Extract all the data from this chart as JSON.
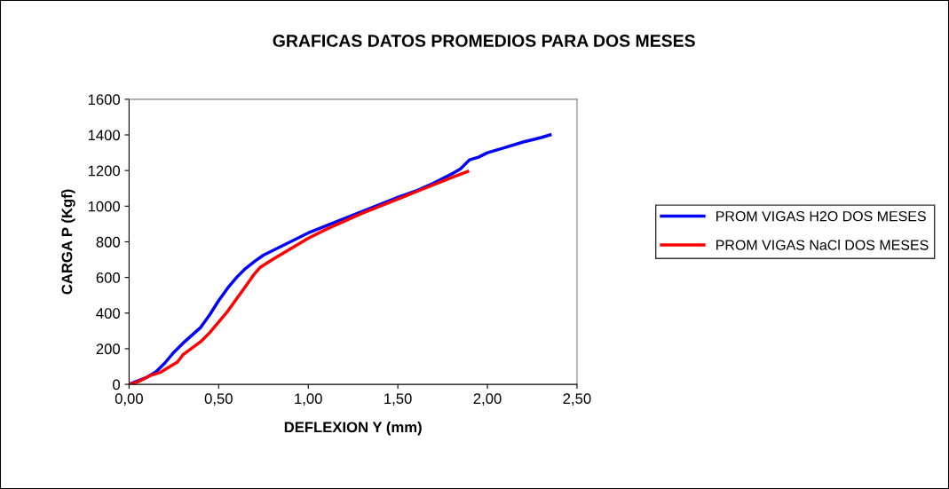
{
  "chart_data": {
    "type": "line",
    "title": "GRAFICAS DATOS PROMEDIOS PARA DOS MESES",
    "xlabel": "DEFLEXION Y (mm)",
    "ylabel": "CARGA P (Kgf)",
    "xlim": [
      0,
      2.5
    ],
    "xticks": [
      {
        "value": 0,
        "label": "0,00"
      },
      {
        "value": 0.5,
        "label": "0,50"
      },
      {
        "value": 1,
        "label": "1,00"
      },
      {
        "value": 1.5,
        "label": "1,50"
      },
      {
        "value": 2,
        "label": "2,00"
      },
      {
        "value": 2.5,
        "label": "2,50"
      }
    ],
    "ylim": [
      0,
      1600
    ],
    "yticks": [
      0,
      200,
      400,
      600,
      800,
      1000,
      1200,
      1400,
      1600
    ],
    "grid": false,
    "legend": "right",
    "marker": "none",
    "line_style": "solid",
    "series": [
      {
        "name": "PROM VIGAS H2O DOS MESES",
        "color": "#0000ff",
        "x": [
          0,
          0.1,
          0.15,
          0.2,
          0.25,
          0.3,
          0.4,
          0.45,
          0.5,
          0.55,
          0.6,
          0.65,
          0.7,
          0.75,
          0.8,
          0.9,
          1.0,
          1.1,
          1.2,
          1.3,
          1.4,
          1.5,
          1.6,
          1.7,
          1.8,
          1.85,
          1.9,
          1.95,
          2.0,
          2.1,
          2.2,
          2.3,
          2.35
        ],
        "values": [
          0,
          40,
          70,
          120,
          180,
          230,
          320,
          390,
          470,
          540,
          600,
          650,
          690,
          725,
          750,
          800,
          850,
          890,
          930,
          970,
          1010,
          1050,
          1085,
          1130,
          1180,
          1210,
          1260,
          1275,
          1300,
          1330,
          1360,
          1385,
          1400
        ]
      },
      {
        "name": "PROM VIGAS NaCl DOS MESES",
        "color": "#ff0000",
        "x": [
          0,
          0.05,
          0.12,
          0.18,
          0.22,
          0.27,
          0.3,
          0.4,
          0.45,
          0.5,
          0.55,
          0.6,
          0.65,
          0.7,
          0.73,
          0.8,
          0.9,
          1.0,
          1.1,
          1.2,
          1.3,
          1.4,
          1.5,
          1.6,
          1.7,
          1.8,
          1.89
        ],
        "values": [
          0,
          15,
          50,
          70,
          95,
          125,
          165,
          240,
          290,
          350,
          410,
          480,
          550,
          620,
          655,
          700,
          760,
          820,
          870,
          915,
          960,
          1000,
          1040,
          1080,
          1120,
          1160,
          1195
        ]
      }
    ]
  }
}
